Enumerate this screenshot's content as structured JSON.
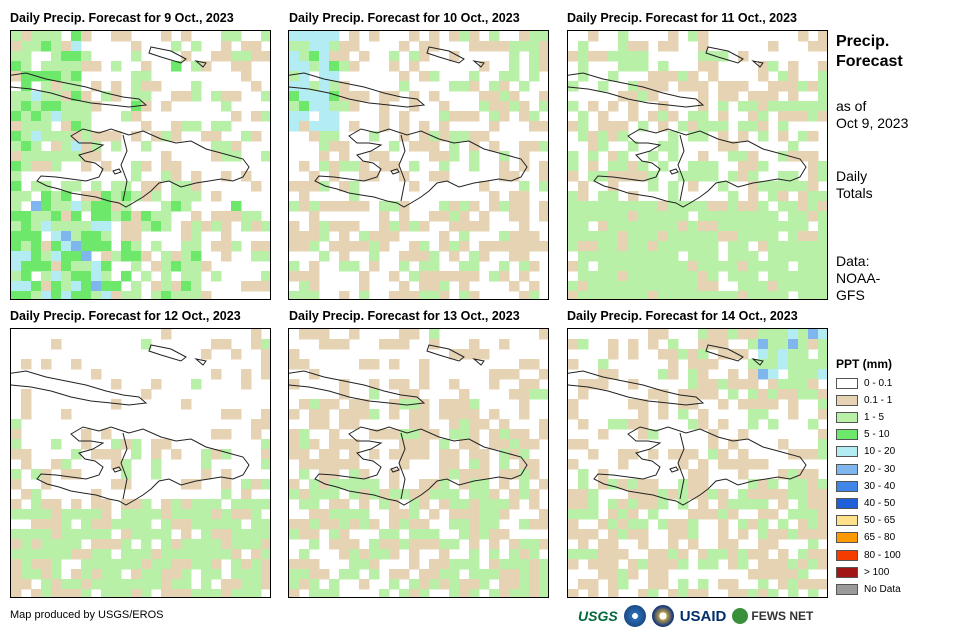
{
  "panels": [
    {
      "title": "Daily Precip. Forecast for 9 Oct., 2023",
      "scene": 0
    },
    {
      "title": "Daily Precip. Forecast for 10 Oct., 2023",
      "scene": 1
    },
    {
      "title": "Daily Precip. Forecast for 11 Oct., 2023",
      "scene": 2
    },
    {
      "title": "Daily Precip. Forecast for 12 Oct., 2023",
      "scene": 3
    },
    {
      "title": "Daily Precip. Forecast for 13 Oct., 2023",
      "scene": 4
    },
    {
      "title": "Daily Precip. Forecast for 14 Oct., 2023",
      "scene": 5
    }
  ],
  "side": {
    "title_line1": "Precip.",
    "title_line2": "Forecast",
    "asof_line1": "as of",
    "asof_line2": "Oct 9, 2023",
    "totals_line1": "Daily",
    "totals_line2": "Totals",
    "data_line1": "Data:",
    "data_line2": "NOAA-",
    "data_line3": "GFS"
  },
  "legend": {
    "title": "PPT (mm)",
    "items": [
      {
        "label": "0 - 0.1",
        "color": "#ffffff"
      },
      {
        "label": "0.1 - 1",
        "color": "#e6d3b3"
      },
      {
        "label": "1 - 5",
        "color": "#b7f0a6"
      },
      {
        "label": "5 - 10",
        "color": "#6de86a"
      },
      {
        "label": "10 - 20",
        "color": "#b3ecf2"
      },
      {
        "label": "20 - 30",
        "color": "#7fb6ee"
      },
      {
        "label": "30 - 40",
        "color": "#3f86e6"
      },
      {
        "label": "40 - 50",
        "color": "#1f5fd8"
      },
      {
        "label": "50 - 65",
        "color": "#fde28b"
      },
      {
        "label": "65 - 80",
        "color": "#fc9a00"
      },
      {
        "label": "80 - 100",
        "color": "#f43c00"
      },
      {
        "label": "> 100",
        "color": "#a31515"
      },
      {
        "label": "No Data",
        "color": "#9a9a9a"
      }
    ]
  },
  "footer": {
    "credit": "Map produced by USGS/EROS"
  },
  "logos": {
    "usgs": "USGS",
    "usaid": "USAID",
    "fews": "FEWS NET"
  }
}
